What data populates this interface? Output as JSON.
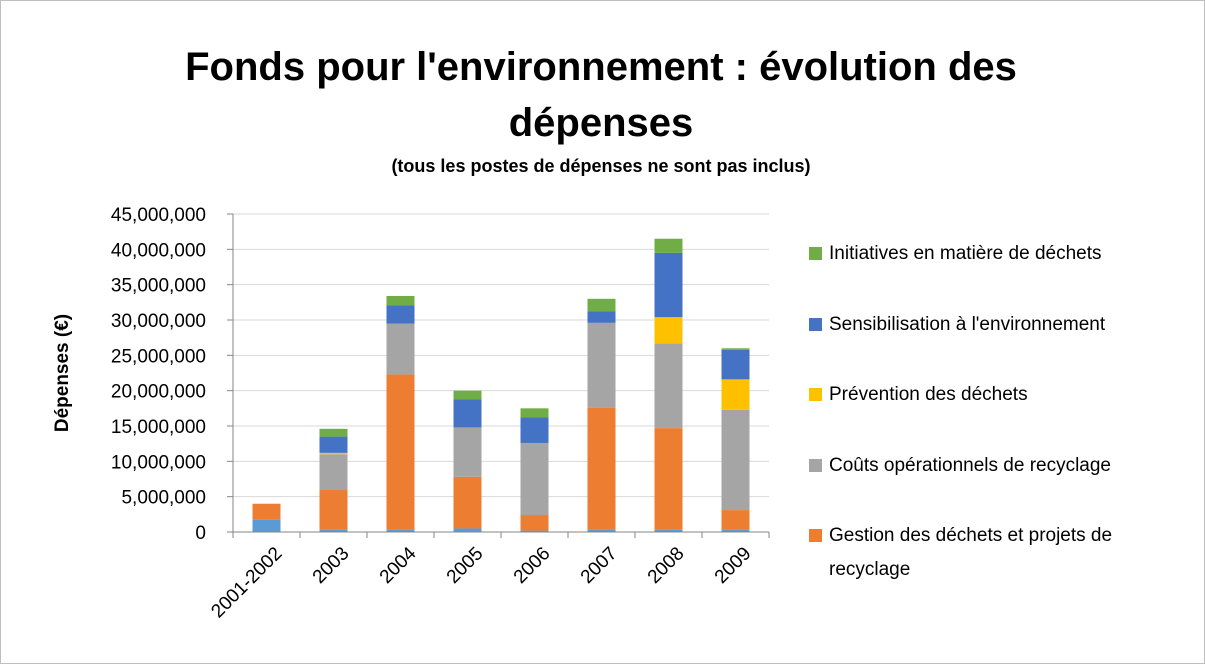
{
  "chart_data": {
    "type": "bar",
    "stacked": true,
    "title": "Fonds pour l'environnement : évolution des dépenses",
    "subtitle": "(tous les postes de dépenses ne sont pas inclus)",
    "y_label": "Dépenses (€)",
    "categories": [
      "2001-2002",
      "2003",
      "2004",
      "2005",
      "2006",
      "2007",
      "2008",
      "2009"
    ],
    "series": [
      {
        "color": "#5b9bd5",
        "values": [
          1800000,
          300000,
          300000,
          500000,
          200000,
          300000,
          300000,
          300000
        ]
      },
      {
        "name": "Gestion des déchets et projets de recyclage",
        "color": "#ed7d31",
        "values": [
          2200000,
          5700000,
          22000000,
          7300000,
          2200000,
          17300000,
          14400000,
          2800000
        ]
      },
      {
        "name": "Coûts opérationnels de recyclage",
        "color": "#a5a5a5",
        "values": [
          0,
          5000000,
          7200000,
          7000000,
          10200000,
          12000000,
          12000000,
          14200000
        ]
      },
      {
        "name": "Prévention des déchets",
        "color": "#ffc000",
        "values": [
          0,
          200000,
          0,
          0,
          0,
          0,
          3700000,
          4300000
        ]
      },
      {
        "name": "Sensibilisation à l'environnement",
        "color": "#4472c4",
        "values": [
          0,
          2300000,
          2600000,
          4000000,
          3600000,
          1600000,
          9100000,
          4200000
        ]
      },
      {
        "name": "Initiatives en matière de déchets",
        "color": "#70ad47",
        "values": [
          0,
          1100000,
          1300000,
          1200000,
          1300000,
          1800000,
          2000000,
          200000
        ]
      }
    ],
    "ylim": [
      0,
      45000000
    ],
    "yticks": [
      0,
      {
        "value": 5000000,
        "label": "5,000,000"
      },
      {
        "value": 10000000,
        "label": "10,000,000"
      },
      {
        "value": 15000000,
        "label": "15,000,000"
      },
      {
        "value": 20000000,
        "label": "20,000,000"
      },
      {
        "value": 25000000,
        "label": "25,000,000"
      },
      {
        "value": 30000000,
        "label": "30,000,000"
      },
      {
        "value": 35000000,
        "label": "35,000,000"
      },
      {
        "value": 40000000,
        "label": "40,000,000"
      },
      {
        "value": 45000000,
        "label": "45,000,000"
      }
    ],
    "grid": true,
    "legend": "right"
  }
}
